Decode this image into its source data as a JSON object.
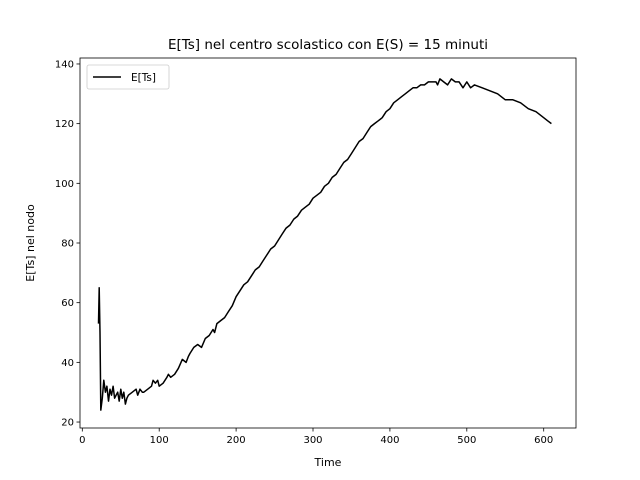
{
  "chart_data": {
    "type": "line",
    "title": "E[Ts] nel centro scolastico con E(S) = 15 minuti",
    "xlabel": "Time",
    "ylabel": "E[Ts] nel nodo",
    "xlim": [
      -3,
      642
    ],
    "ylim": [
      18,
      142
    ],
    "xticks": [
      0,
      100,
      200,
      300,
      400,
      500,
      600
    ],
    "yticks": [
      20,
      40,
      60,
      80,
      100,
      120,
      140
    ],
    "grid": false,
    "legend_position": "top-left",
    "series": [
      {
        "name": "E[Ts]",
        "color": "#000000",
        "x": [
          21,
          22,
          23,
          24,
          26,
          28,
          30,
          32,
          34,
          36,
          38,
          40,
          42,
          44,
          46,
          48,
          50,
          52,
          54,
          56,
          58,
          60,
          65,
          70,
          72,
          75,
          78,
          80,
          85,
          90,
          92,
          95,
          98,
          100,
          105,
          110,
          112,
          115,
          120,
          125,
          130,
          135,
          138,
          140,
          145,
          150,
          155,
          160,
          165,
          170,
          172,
          175,
          180,
          185,
          190,
          195,
          200,
          205,
          210,
          215,
          220,
          225,
          230,
          235,
          240,
          245,
          250,
          255,
          260,
          265,
          270,
          275,
          280,
          285,
          290,
          295,
          300,
          305,
          310,
          315,
          320,
          325,
          330,
          335,
          340,
          345,
          350,
          355,
          360,
          365,
          370,
          375,
          380,
          385,
          390,
          395,
          400,
          405,
          410,
          415,
          420,
          425,
          430,
          435,
          440,
          445,
          450,
          455,
          460,
          462,
          465,
          470,
          475,
          480,
          485,
          490,
          495,
          500,
          505,
          510,
          520,
          530,
          540,
          550,
          560,
          570,
          580,
          590,
          600,
          605,
          610
        ],
        "y": [
          53,
          65,
          50,
          24,
          28,
          34,
          30,
          32,
          27,
          31,
          29,
          32,
          28,
          29,
          30,
          27,
          31,
          28,
          30,
          26,
          28,
          29,
          30,
          31,
          29,
          31,
          30,
          30,
          31,
          32,
          34,
          33,
          34,
          32,
          33,
          35,
          36,
          35,
          36,
          38,
          41,
          40,
          42,
          43,
          45,
          46,
          45,
          48,
          49,
          51,
          50,
          53,
          54,
          55,
          57,
          59,
          62,
          64,
          66,
          67,
          69,
          71,
          72,
          74,
          76,
          78,
          79,
          81,
          83,
          85,
          86,
          88,
          89,
          91,
          92,
          93,
          95,
          96,
          97,
          99,
          100,
          102,
          103,
          105,
          107,
          108,
          110,
          112,
          114,
          115,
          117,
          119,
          120,
          121,
          122,
          124,
          125,
          127,
          128,
          129,
          130,
          131,
          132,
          132,
          133,
          133,
          134,
          134,
          134,
          133,
          135,
          134,
          133,
          135,
          134,
          134,
          132,
          134,
          132,
          133,
          132,
          131,
          130,
          128,
          128,
          127,
          125,
          124,
          122,
          121,
          120
        ]
      }
    ]
  }
}
